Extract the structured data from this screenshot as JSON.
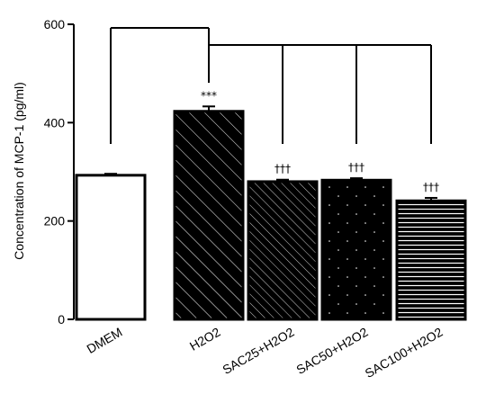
{
  "chart_data": {
    "type": "bar",
    "title": "",
    "xlabel": "",
    "ylabel": "Concentration of MCP-1 (pg/ml)",
    "ylim": [
      0,
      600
    ],
    "yticks": [
      0,
      200,
      400,
      600
    ],
    "grid": false,
    "categories": [
      "DMEM",
      "H2O2",
      "SAC25+H2O2",
      "SAC50+H2O2",
      "SAC100+H2O2"
    ],
    "values": [
      293,
      423,
      280,
      283,
      241
    ],
    "errors": [
      3,
      10,
      4,
      4,
      6
    ],
    "fills": [
      "white",
      "diagonal-hatch-dark",
      "diagonal-hatch-light",
      "dotted",
      "horizontal-stripes"
    ],
    "significance": [
      "",
      "***",
      "†††",
      "†††",
      "†††"
    ],
    "colors": {
      "bar_dark": "#000000",
      "bar_light": "#ffffff",
      "axis": "#000000"
    }
  }
}
